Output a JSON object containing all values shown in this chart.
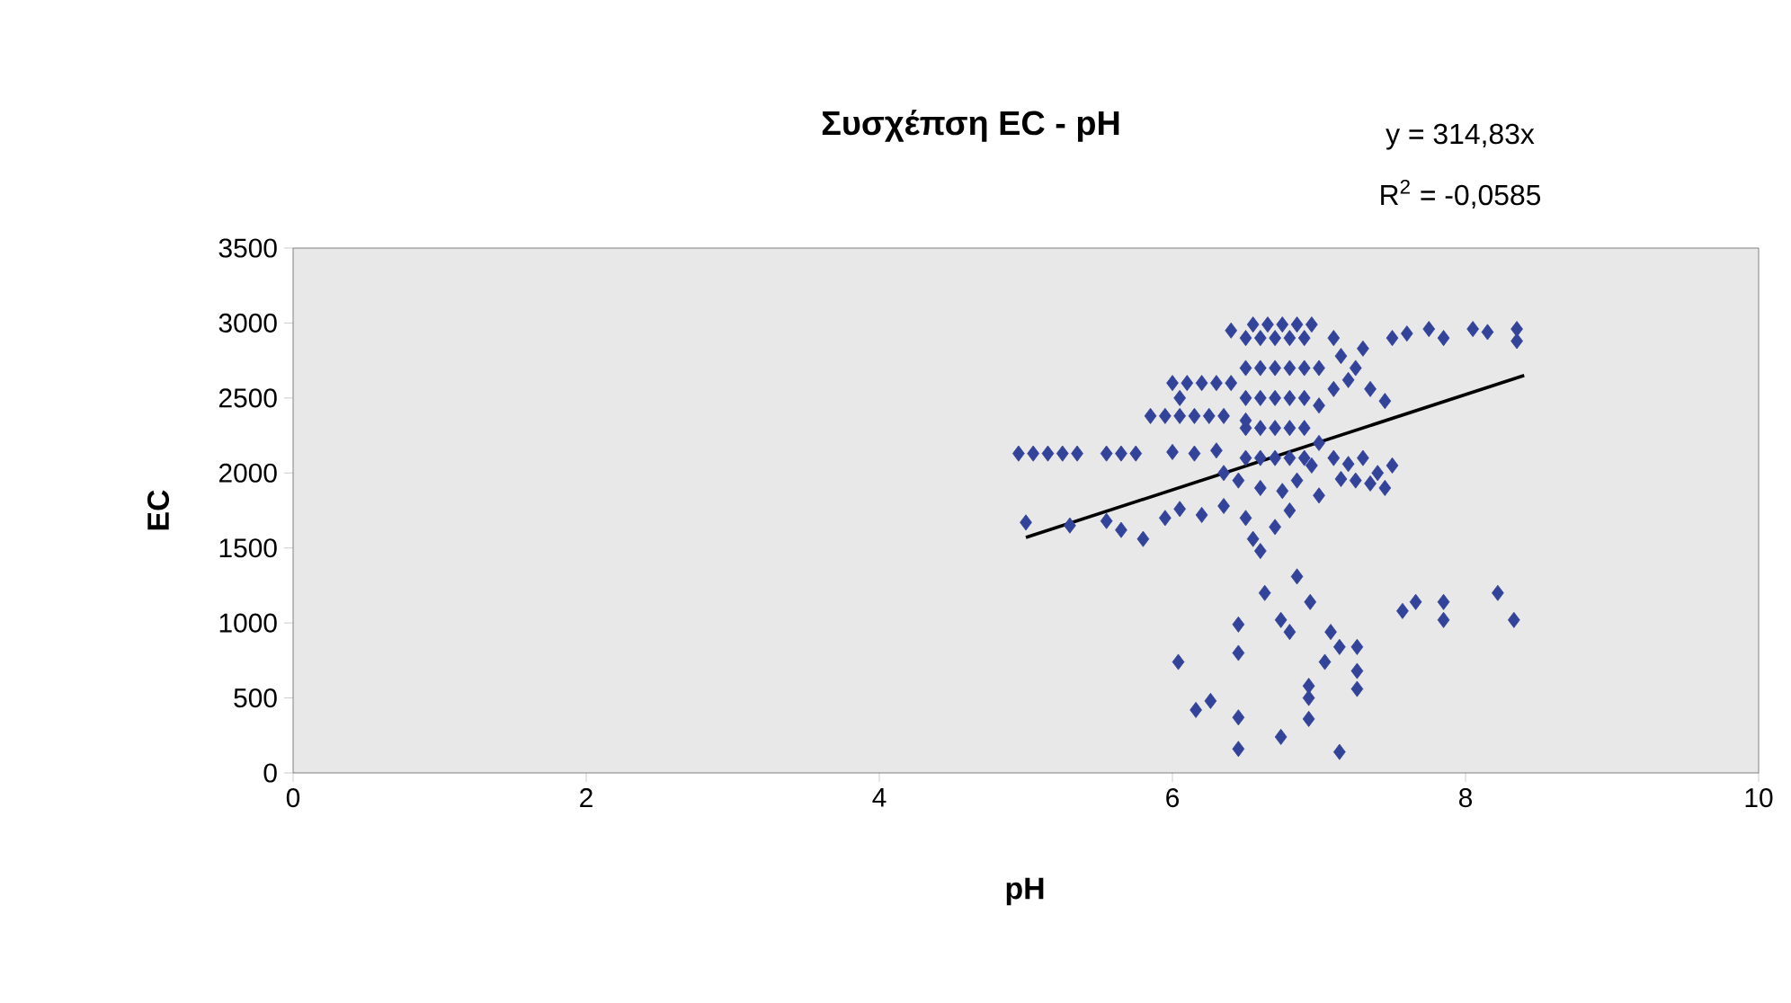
{
  "chart_data": {
    "type": "scatter",
    "title": "Συσχέπση EC - pH",
    "xlabel": "pH",
    "ylabel": "EC",
    "annotations": [
      "y = 314,83x",
      "R$^{2}$ = -0,0585"
    ],
    "xlim": [
      0,
      10
    ],
    "xticks": [
      0,
      2,
      4,
      6,
      8,
      10
    ],
    "ylim": [
      0,
      3500
    ],
    "yticks": [
      0,
      500,
      1000,
      1500,
      2000,
      2500,
      3000,
      3500
    ],
    "series": [
      {
        "color": "#33439a",
        "marker": "diamond",
        "x": [
          4.95,
          5.05,
          5.15,
          5.25,
          5.35,
          5.55,
          5.65,
          5.75,
          6.0,
          6.15,
          6.3,
          5.0,
          5.3,
          5.55,
          5.65,
          5.8,
          5.95,
          6.05,
          6.2,
          6.35,
          6.5,
          6.55,
          6.6,
          6.7,
          6.8,
          6.75,
          5.85,
          5.95,
          6.05,
          6.15,
          6.25,
          6.35,
          6.5,
          6.0,
          6.1,
          6.2,
          6.3,
          6.4,
          6.05,
          6.5,
          6.6,
          6.7,
          6.8,
          6.9,
          6.5,
          6.6,
          6.7,
          6.8,
          6.9,
          6.5,
          6.6,
          6.7,
          6.8,
          6.9,
          6.5,
          6.6,
          6.7,
          6.8,
          6.9,
          6.5,
          6.6,
          6.7,
          6.8,
          6.9,
          6.4,
          6.55,
          6.65,
          6.75,
          6.85,
          6.95,
          7.0,
          7.0,
          7.0,
          6.35,
          6.45,
          6.6,
          6.85,
          6.95,
          7.0,
          7.1,
          7.15,
          7.25,
          7.3,
          7.2,
          7.35,
          7.1,
          7.45,
          7.5,
          7.6,
          7.1,
          7.2,
          7.3,
          7.15,
          7.25,
          7.35,
          7.45,
          7.5,
          7.4,
          7.75,
          7.85,
          8.05,
          8.15,
          8.35,
          8.35,
          6.04,
          6.16,
          6.26,
          6.45,
          6.45,
          6.45,
          6.45,
          6.63,
          6.85,
          6.94,
          6.74,
          6.8,
          6.74,
          7.08,
          7.14,
          7.26,
          7.04,
          7.26,
          7.26,
          6.93,
          6.93,
          6.93,
          7.14,
          7.57,
          7.66,
          7.85,
          7.85,
          8.22,
          8.33
        ],
        "values": [
          2130,
          2130,
          2130,
          2130,
          2130,
          2130,
          2130,
          2130,
          2140,
          2130,
          2150,
          1670,
          1650,
          1680,
          1620,
          1560,
          1700,
          1760,
          1720,
          1780,
          1700,
          1560,
          1480,
          1640,
          1750,
          1880,
          2380,
          2380,
          2380,
          2380,
          2380,
          2380,
          2350,
          2600,
          2600,
          2600,
          2600,
          2600,
          2500,
          2100,
          2100,
          2100,
          2100,
          2100,
          2300,
          2300,
          2300,
          2300,
          2300,
          2500,
          2500,
          2500,
          2500,
          2500,
          2700,
          2700,
          2700,
          2700,
          2700,
          2900,
          2900,
          2900,
          2900,
          2900,
          2950,
          2990,
          2990,
          2990,
          2990,
          2990,
          2700,
          2450,
          2200,
          2000,
          1950,
          1900,
          1950,
          2050,
          1850,
          2900,
          2780,
          2700,
          2830,
          2620,
          2560,
          2560,
          2480,
          2900,
          2930,
          2100,
          2060,
          2100,
          1960,
          1950,
          1930,
          1900,
          2050,
          2000,
          2960,
          2900,
          2960,
          2940,
          2960,
          2880,
          740,
          420,
          480,
          370,
          160,
          990,
          800,
          1200,
          1310,
          1140,
          1020,
          940,
          240,
          940,
          840,
          840,
          740,
          680,
          560,
          580,
          500,
          360,
          140,
          1080,
          1140,
          1140,
          1020,
          1200,
          1020
        ]
      },
      {
        "type": "line",
        "color": "#000000",
        "marker": "none",
        "x": [
          5,
          8.4
        ],
        "values": [
          1570,
          2650
        ]
      }
    ]
  }
}
